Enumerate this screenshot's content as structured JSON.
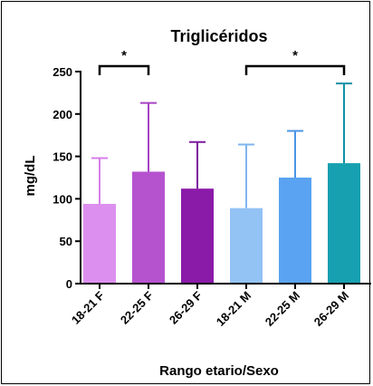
{
  "chart_data": {
    "type": "bar",
    "title": "Triglicéridos",
    "xlabel": "Rango etario/Sexo",
    "ylabel": "mg/dL",
    "categories": [
      "18-21 F",
      "22-25 F",
      "26-29 F",
      "18-21 M",
      "22-25 M",
      "26-29 M"
    ],
    "values": [
      94,
      132,
      112,
      89,
      125,
      142
    ],
    "error_upper": [
      148,
      213,
      167,
      164,
      180,
      236
    ],
    "ylim": [
      0,
      250
    ],
    "yticks": [
      0,
      50,
      100,
      150,
      200,
      250
    ],
    "ytick_labels": [
      "0",
      "50",
      "100",
      "150",
      "200",
      "250"
    ],
    "grid": false,
    "legend": "none",
    "colors": [
      "#dd8ff0",
      "#b553cf",
      "#8a1aa8",
      "#93c2f5",
      "#5aa3f2",
      "#17a0b0"
    ],
    "error_colors": [
      "#d57ee9",
      "#a843c3",
      "#7d1aa0",
      "#7fb5ee",
      "#4b95e6",
      "#1390a4"
    ],
    "significance": [
      {
        "from": 0,
        "to": 1,
        "label": "*"
      },
      {
        "from": 3,
        "to": 5,
        "label": "*"
      }
    ]
  }
}
